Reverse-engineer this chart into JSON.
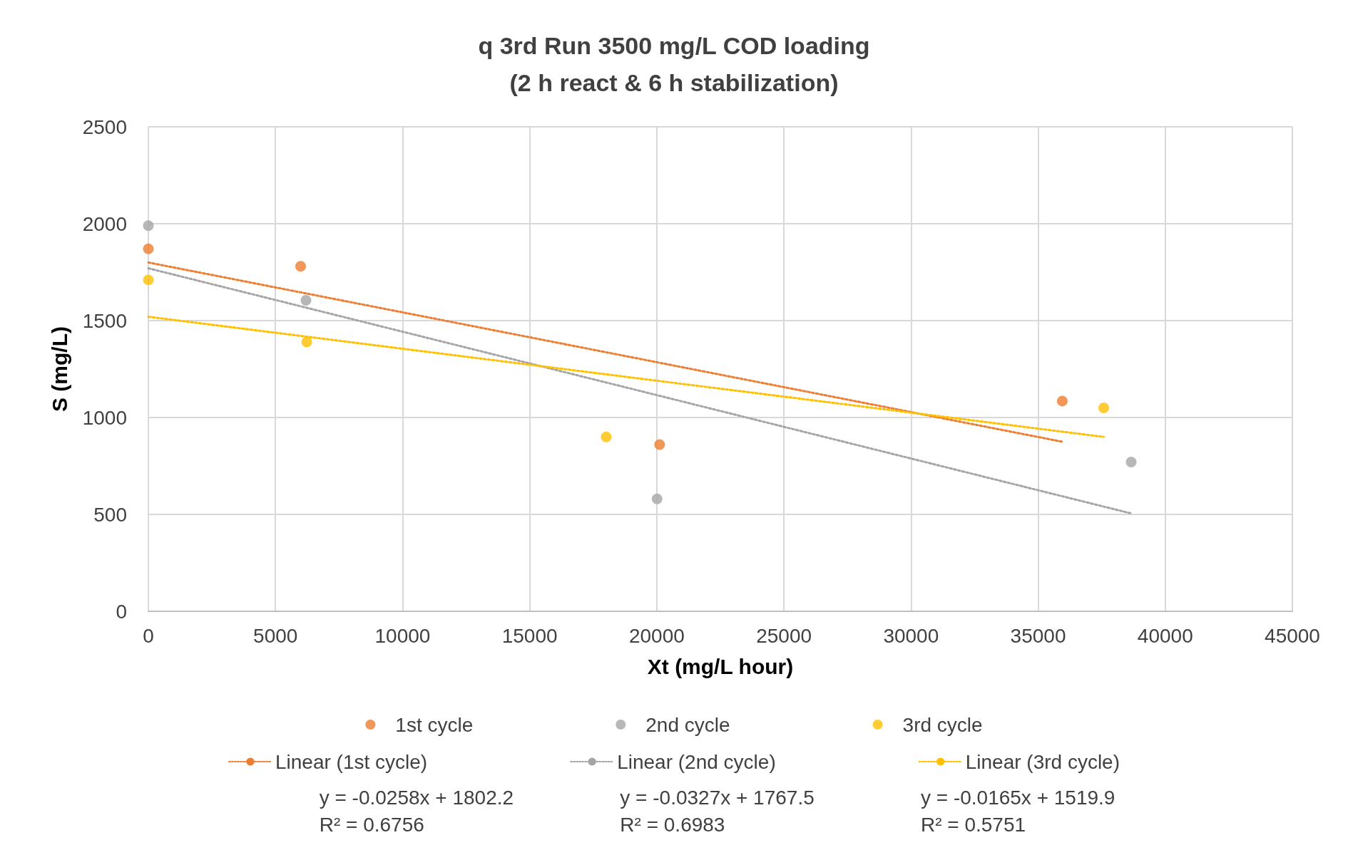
{
  "chart_data": {
    "type": "scatter",
    "title": "q 3rd Run 3500 mg/L COD loading\n(2 h react & 6 h stabilization)",
    "xlabel": "Xt (mg/L hour)",
    "ylabel": "S (mg/L)",
    "xlim": [
      0,
      45000
    ],
    "xticks": [
      0,
      5000,
      10000,
      15000,
      20000,
      25000,
      30000,
      35000,
      40000,
      45000
    ],
    "ylim": [
      0,
      2500
    ],
    "yticks": [
      0,
      500,
      1000,
      1500,
      2000,
      2500
    ],
    "grid": true,
    "legend": "bottom",
    "marker": "circle",
    "series": [
      {
        "name": "1st cycle",
        "color": "#ed7d31",
        "x": [
          0,
          5990,
          20110,
          35950
        ],
        "values": [
          1870,
          1780,
          860,
          1085
        ]
      },
      {
        "name": "2nd cycle",
        "color": "#a5a5a5",
        "x": [
          0,
          6200,
          20010,
          38660
        ],
        "values": [
          1990,
          1605,
          580,
          770
        ]
      },
      {
        "name": "3rd cycle",
        "color": "#ffc000",
        "x": [
          0,
          6230,
          18010,
          37580
        ],
        "values": [
          1710,
          1390,
          900,
          1050
        ]
      },
      {
        "name": "Linear (1st cycle)",
        "type": "line",
        "line_style": "dotted",
        "marker": "none",
        "color": "#ed7d31",
        "x": [
          0,
          35950
        ],
        "values": [
          1800,
          875
        ]
      },
      {
        "name": "Linear (2nd cycle)",
        "type": "line",
        "line_style": "dotted",
        "marker": "none",
        "color": "#a5a5a5",
        "x": [
          0,
          38660
        ],
        "values": [
          1770,
          505
        ]
      },
      {
        "name": "Linear (3rd cycle)",
        "type": "line",
        "line_style": "dotted",
        "marker": "none",
        "color": "#ffc000",
        "x": [
          0,
          37580
        ],
        "values": [
          1520,
          900
        ]
      }
    ],
    "annotations": [
      "y = -0.0258x + 1802.2\nR² = 0.6756",
      "y = -0.0327x + 1767.5\nR² = 0.6983",
      "y = -0.0165x + 1519.9\nR² = 0.5751"
    ]
  }
}
